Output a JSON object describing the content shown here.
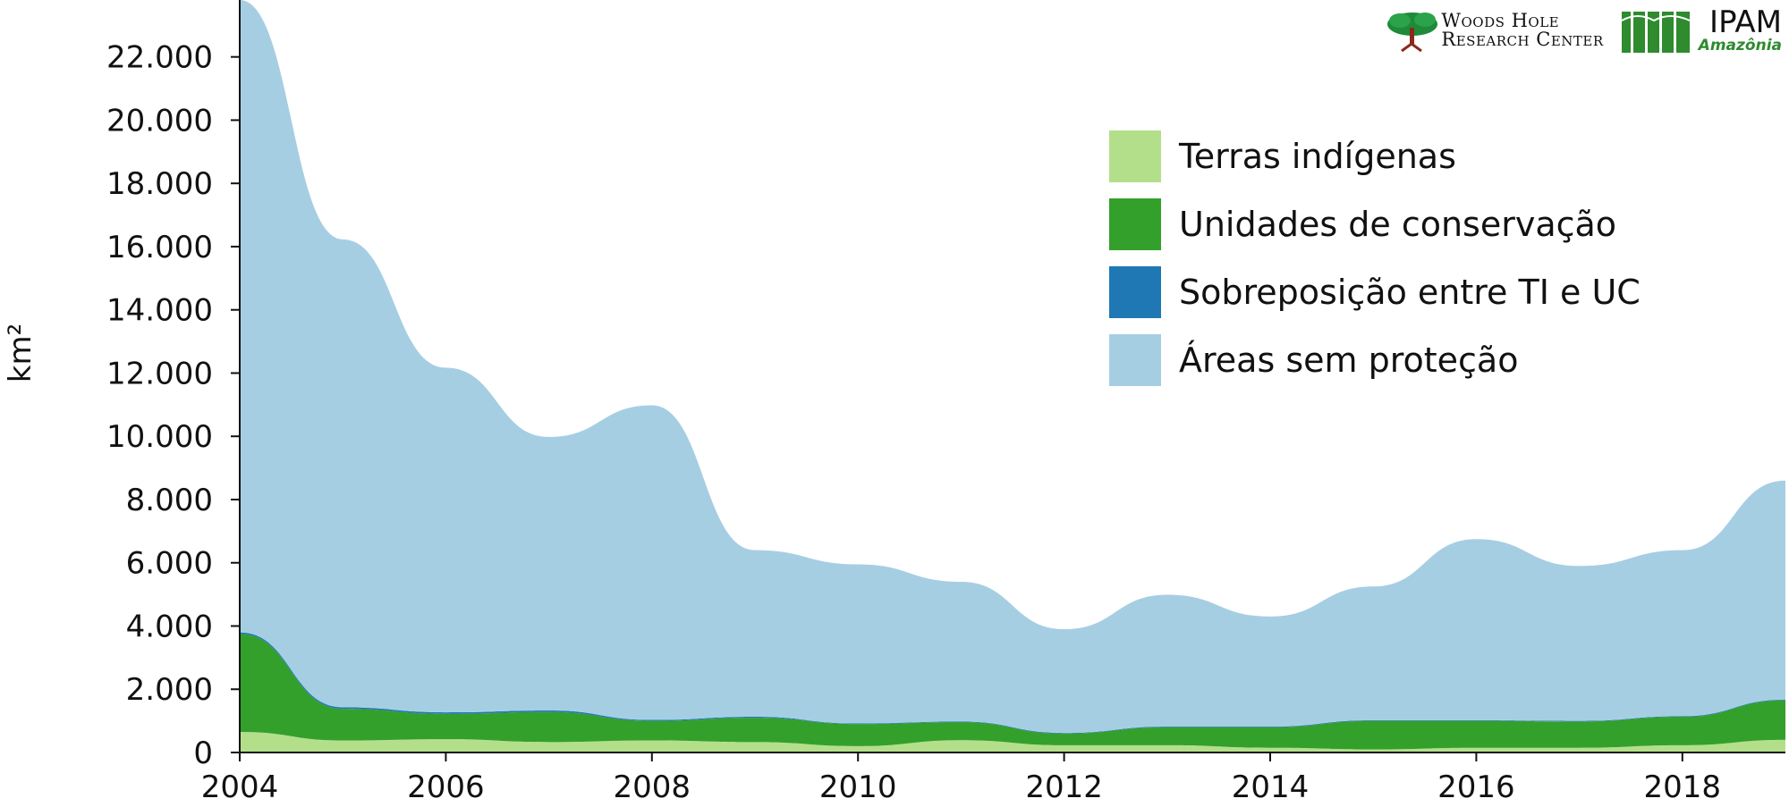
{
  "chart_data": {
    "type": "area",
    "stacked": true,
    "title": "",
    "xlabel": "",
    "ylabel": "km²",
    "x": [
      2004,
      2005,
      2006,
      2007,
      2008,
      2009,
      2010,
      2011,
      2012,
      2013,
      2014,
      2015,
      2016,
      2017,
      2018,
      2019
    ],
    "xlim": [
      2004,
      2019
    ],
    "x_ticks": [
      "2004",
      "2006",
      "2008",
      "2010",
      "2012",
      "2014",
      "2016",
      "2018"
    ],
    "x_tick_values": [
      2004,
      2006,
      2008,
      2010,
      2012,
      2014,
      2016,
      2018
    ],
    "ylim": [
      0,
      23800
    ],
    "y_ticks": [
      "0",
      "2.000",
      "4.000",
      "6.000",
      "8.000",
      "10.000",
      "12.000",
      "14.000",
      "16.000",
      "18.000",
      "20.000",
      "22.000"
    ],
    "y_tick_values": [
      0,
      2000,
      4000,
      6000,
      8000,
      10000,
      12000,
      14000,
      16000,
      18000,
      20000,
      22000
    ],
    "grid": false,
    "legend_position": "top-right",
    "series": [
      {
        "name": "Terras indígenas",
        "color": "#b3df8a",
        "values": [
          650,
          380,
          420,
          330,
          380,
          330,
          200,
          390,
          230,
          230,
          150,
          100,
          150,
          150,
          230,
          400
        ]
      },
      {
        "name": "Unidades de conservação",
        "color": "#33a02c",
        "values": [
          3100,
          1000,
          800,
          950,
          620,
          770,
          700,
          570,
          370,
          570,
          650,
          900,
          850,
          830,
          900,
          1250
        ]
      },
      {
        "name": "Sobreposição entre TI e UC",
        "color": "#1f78b4",
        "values": [
          50,
          50,
          50,
          50,
          30,
          30,
          20,
          20,
          20,
          20,
          20,
          20,
          20,
          20,
          20,
          20
        ]
      },
      {
        "name": "Áreas sem proteção",
        "color": "#a6cee3",
        "values": [
          20000,
          14800,
          10900,
          8650,
          9950,
          5270,
          5030,
          4420,
          3280,
          4170,
          3480,
          4230,
          5730,
          4900,
          5250,
          6930
        ]
      }
    ]
  },
  "logos": {
    "whrc_line1": "Woods Hole",
    "whrc_line2": "Research Center",
    "ipam_name": "IPAM",
    "ipam_sub": "Amazônia"
  }
}
